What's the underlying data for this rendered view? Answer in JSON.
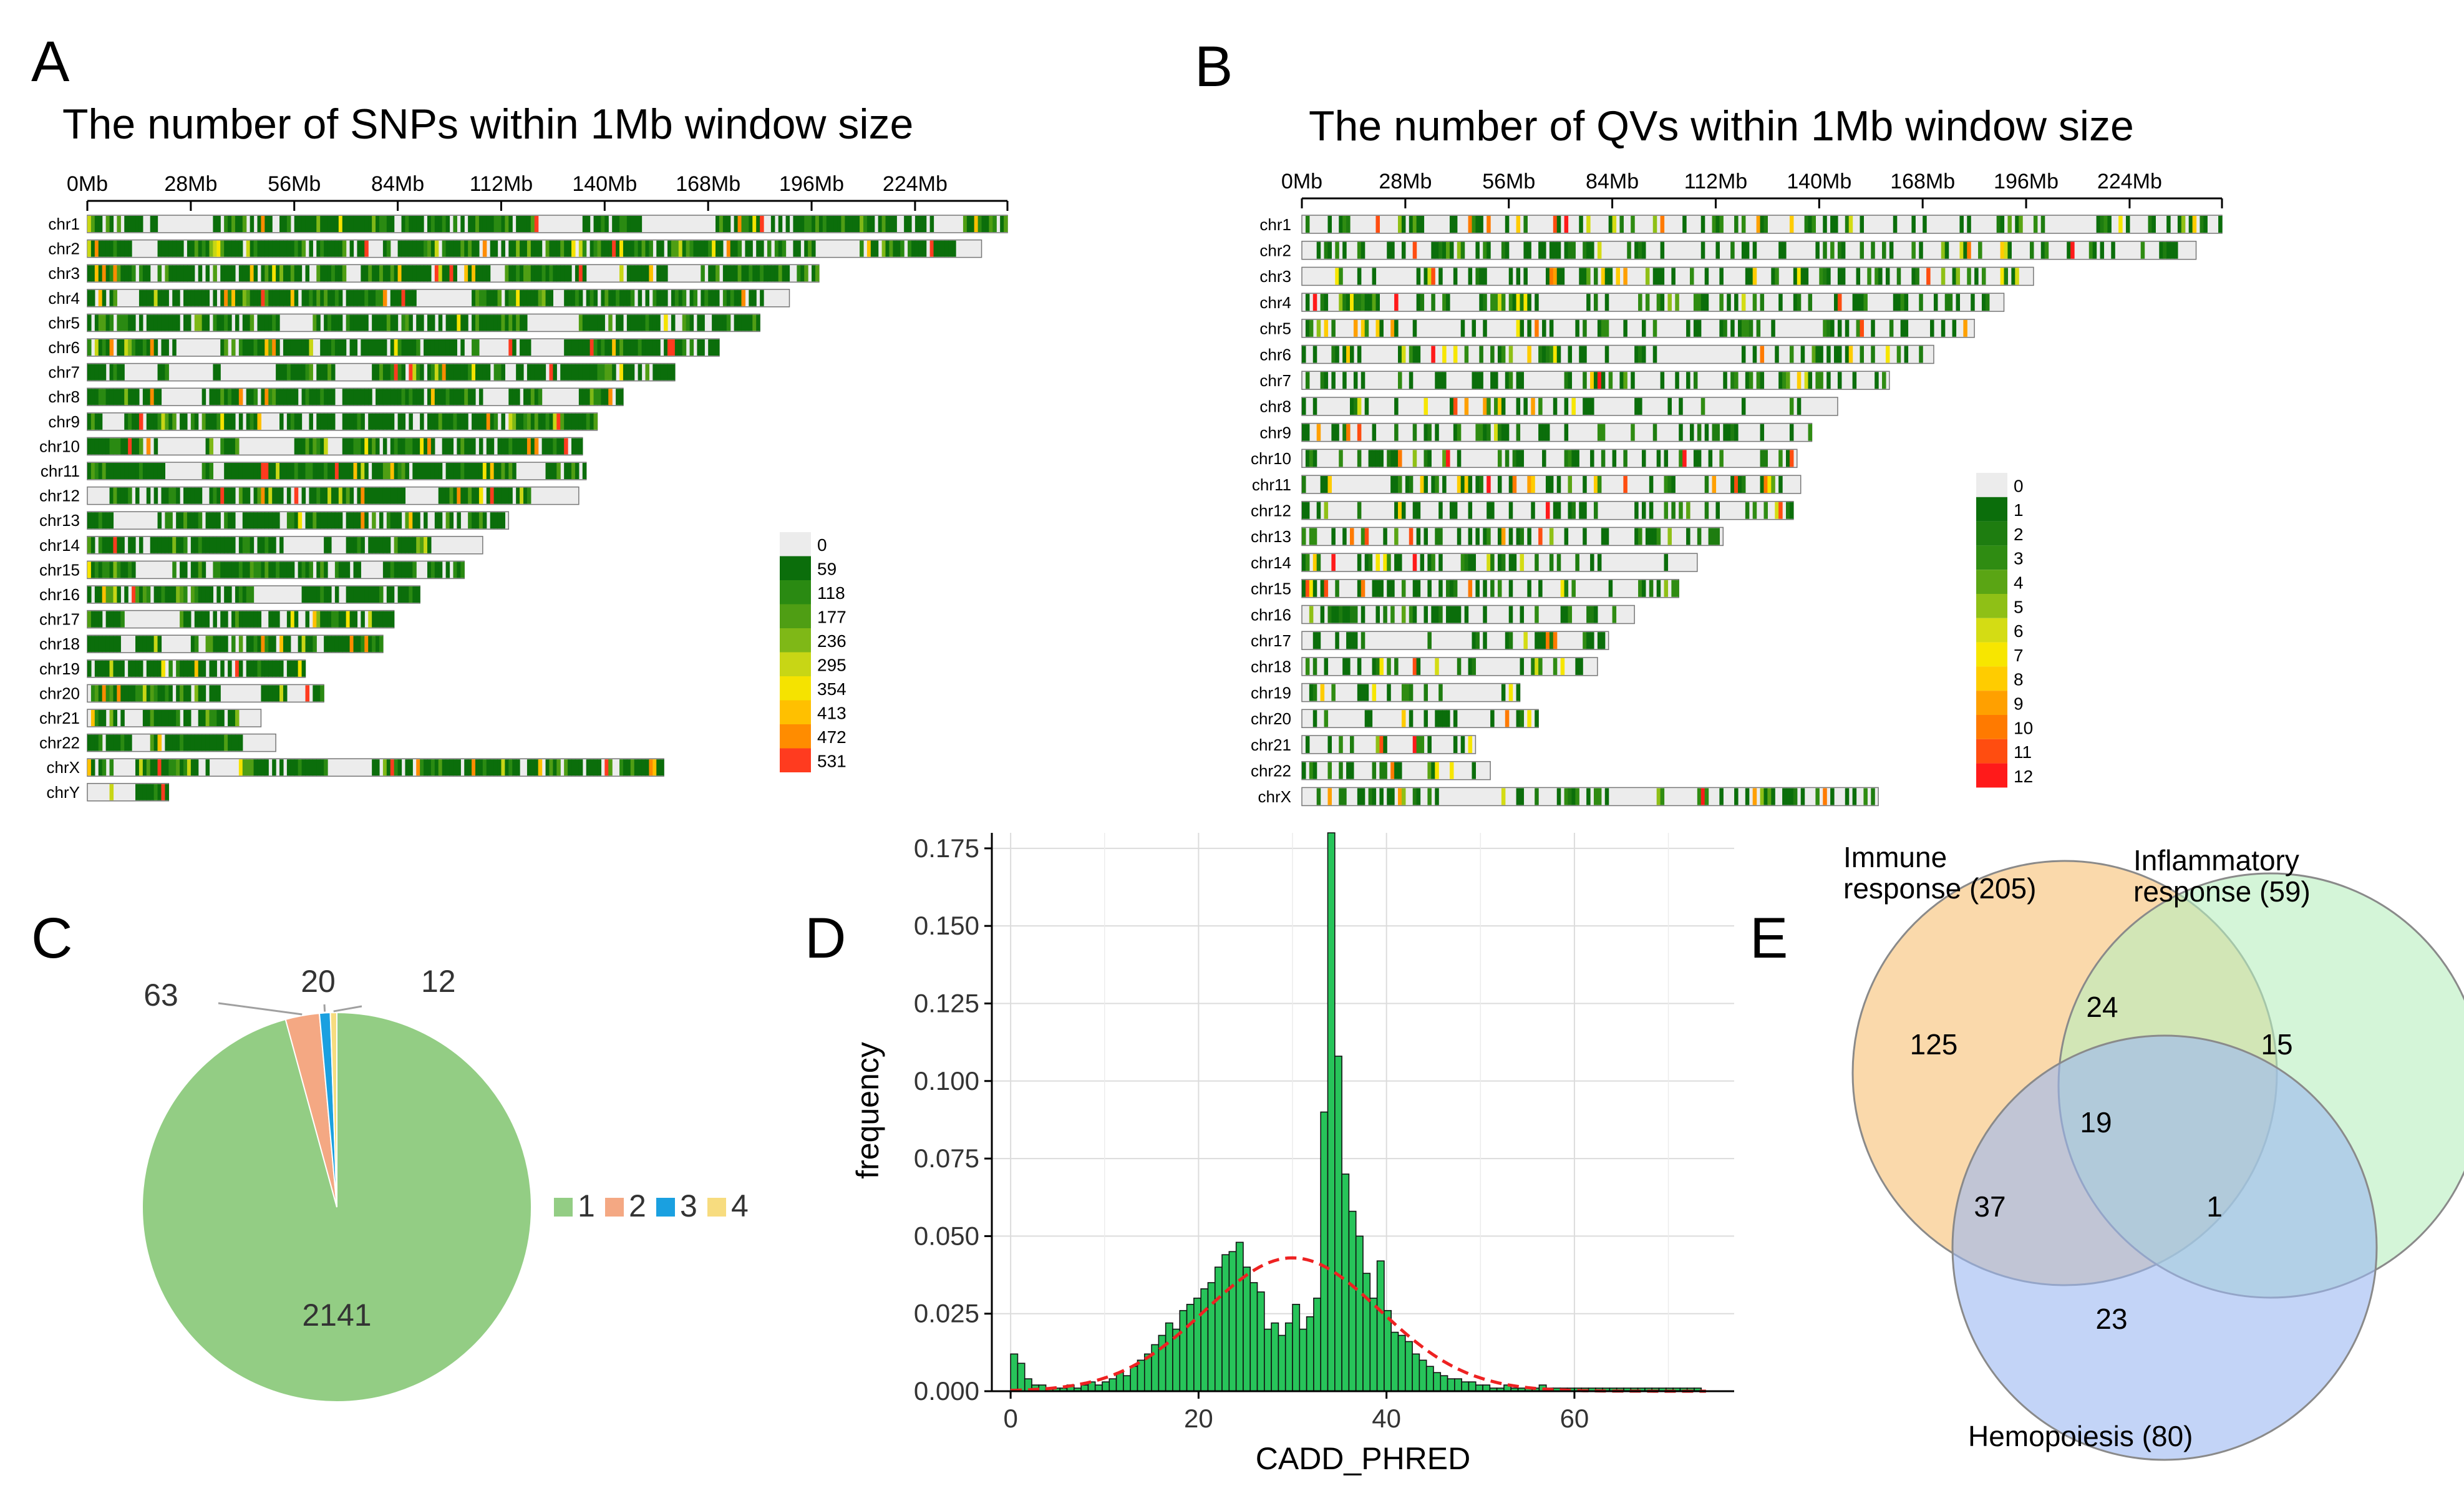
{
  "panel_letters": {
    "a": "A",
    "b": "B",
    "c": "C",
    "d": "D",
    "e": "E"
  },
  "chart_data": [
    {
      "panel": "A",
      "type": "heatmap",
      "title": "The number of SNPs within 1Mb window size",
      "x_ticks": [
        "0Mb",
        "28Mb",
        "56Mb",
        "84Mb",
        "112Mb",
        "140Mb",
        "168Mb",
        "196Mb",
        "224Mb"
      ],
      "x_tick_values": [
        0,
        28,
        56,
        84,
        112,
        140,
        168,
        196,
        224
      ],
      "xlim": [
        0,
        249
      ],
      "chromosomes": [
        "chr1",
        "chr2",
        "chr3",
        "chr4",
        "chr5",
        "chr6",
        "chr7",
        "chr8",
        "chr9",
        "chr10",
        "chr11",
        "chr12",
        "chr13",
        "chr14",
        "chr15",
        "chr16",
        "chr17",
        "chr18",
        "chr19",
        "chr20",
        "chr21",
        "chr22",
        "chrX",
        "chrY"
      ],
      "lengths_mb": [
        249,
        242,
        198,
        190,
        182,
        171,
        159,
        145,
        138,
        134,
        135,
        133,
        114,
        107,
        102,
        90,
        83,
        80,
        59,
        64,
        47,
        51,
        156,
        22
      ],
      "legend_values": [
        "0",
        "59",
        "118",
        "177",
        "236",
        "295",
        "354",
        "413",
        "472",
        "531"
      ],
      "colors": [
        "#ececec",
        "#0b6e0b",
        "#2a8a12",
        "#4f9e14",
        "#7fb817",
        "#c8d615",
        "#f5e300",
        "#ffc000",
        "#ff8c00",
        "#ff3b1f"
      ],
      "grid": false
    },
    {
      "panel": "B",
      "type": "heatmap",
      "title": "The number of QVs within 1Mb window size",
      "x_ticks": [
        "0Mb",
        "28Mb",
        "56Mb",
        "84Mb",
        "112Mb",
        "140Mb",
        "168Mb",
        "196Mb",
        "224Mb"
      ],
      "x_tick_values": [
        0,
        28,
        56,
        84,
        112,
        140,
        168,
        196,
        224
      ],
      "xlim": [
        0,
        249
      ],
      "chromosomes": [
        "chr1",
        "chr2",
        "chr3",
        "chr4",
        "chr5",
        "chr6",
        "chr7",
        "chr8",
        "chr9",
        "chr10",
        "chr11",
        "chr12",
        "chr13",
        "chr14",
        "chr15",
        "chr16",
        "chr17",
        "chr18",
        "chr19",
        "chr20",
        "chr21",
        "chr22",
        "chrX"
      ],
      "lengths_mb": [
        249,
        242,
        198,
        190,
        182,
        171,
        159,
        145,
        138,
        134,
        135,
        133,
        114,
        107,
        102,
        90,
        83,
        80,
        59,
        64,
        47,
        51,
        156
      ],
      "legend_values": [
        "0",
        "1",
        "2",
        "3",
        "4",
        "5",
        "6",
        "7",
        "8",
        "9",
        "10",
        "11",
        "12"
      ],
      "colors": [
        "#ececec",
        "#0b6e0b",
        "#1e7d10",
        "#2f8c12",
        "#5aa514",
        "#8fc016",
        "#d4dc14",
        "#f7e600",
        "#ffcc00",
        "#ffa000",
        "#ff7a00",
        "#ff4d10",
        "#ff1a1a"
      ],
      "grid": false
    },
    {
      "panel": "C",
      "type": "pie",
      "categories": [
        "1",
        "2",
        "3",
        "4"
      ],
      "values": [
        2141,
        63,
        20,
        12
      ],
      "colors": [
        "#93cd84",
        "#f4a883",
        "#1aa0e0",
        "#f7dc7f"
      ],
      "legend_position": "right"
    },
    {
      "panel": "D",
      "type": "bar",
      "xlabel": "CADD_PHRED",
      "ylabel": "frequency",
      "xlim": [
        -2,
        77
      ],
      "ylim": [
        0,
        0.18
      ],
      "x_ticks": [
        "0",
        "20",
        "40",
        "60"
      ],
      "y_ticks": [
        "0.000",
        "0.025",
        "0.050",
        "0.075",
        "0.100",
        "0.125",
        "0.150",
        "0.175"
      ],
      "bin_width": 0.75,
      "bins_x": [
        0,
        0.75,
        1.5,
        2.25,
        3,
        3.75,
        4.5,
        5.25,
        6,
        6.75,
        7.5,
        8.25,
        9,
        9.75,
        10.5,
        11.25,
        12,
        12.75,
        13.5,
        14.25,
        15,
        15.75,
        16.5,
        17.25,
        18,
        18.75,
        19.5,
        20.25,
        21,
        21.75,
        22.5,
        23.25,
        24,
        24.75,
        25.5,
        26.25,
        27,
        27.75,
        28.5,
        29.25,
        30,
        30.75,
        31.5,
        32.25,
        33,
        33.75,
        34.5,
        35.25,
        36,
        36.75,
        37.5,
        38.25,
        39,
        39.75,
        40.5,
        41.25,
        42,
        42.75,
        43.5,
        44.25,
        45,
        45.75,
        46.5,
        47.25,
        48,
        48.75,
        49.5,
        50.25,
        51,
        51.75,
        52.5,
        53.25,
        54,
        54.75,
        55.5,
        56.25,
        57,
        57.75,
        58.5,
        59.25,
        60,
        60.75,
        61.5,
        62.25,
        63,
        63.75,
        64.5,
        65.25,
        66,
        66.75,
        67.5,
        68.25,
        69,
        69.75,
        70.5,
        71.25,
        72,
        72.75
      ],
      "values": [
        0.012,
        0.009,
        0.004,
        0.002,
        0.002,
        0.001,
        0.001,
        0.001,
        0.002,
        0.001,
        0.002,
        0.003,
        0.002,
        0.003,
        0.004,
        0.006,
        0.005,
        0.008,
        0.01,
        0.012,
        0.015,
        0.018,
        0.022,
        0.02,
        0.026,
        0.028,
        0.03,
        0.033,
        0.035,
        0.04,
        0.044,
        0.045,
        0.048,
        0.04,
        0.035,
        0.032,
        0.02,
        0.022,
        0.018,
        0.022,
        0.028,
        0.02,
        0.024,
        0.03,
        0.09,
        0.18,
        0.108,
        0.07,
        0.058,
        0.05,
        0.038,
        0.03,
        0.042,
        0.026,
        0.019,
        0.018,
        0.016,
        0.012,
        0.01,
        0.008,
        0.006,
        0.005,
        0.004,
        0.004,
        0.003,
        0.003,
        0.002,
        0.002,
        0.001,
        0.001,
        0.002,
        0.001,
        0.001,
        0.001,
        0.001,
        0.002,
        0.001,
        0.001,
        0.001,
        0.001,
        0.001,
        0.001,
        0.001,
        0.001,
        0.001,
        0.001,
        0.001,
        0.001,
        0.001,
        0.001,
        0.001,
        0.001,
        0.001,
        0.001,
        0.001,
        0.001,
        0.001,
        0.001
      ],
      "density_curve": {
        "mean": 30,
        "sd": 9.3,
        "peak": 0.043
      },
      "bar_color": "#27c45a",
      "curve_color": "#ee2222",
      "grid": true
    },
    {
      "panel": "E",
      "type": "venn",
      "sets": [
        {
          "label_line1": "Immune",
          "label_line2": "response (205)",
          "color": "#f8c988"
        },
        {
          "label_line1": "Inflammatory",
          "label_line2": "response (59)",
          "color": "#b8eebe"
        },
        {
          "label_line1": "Hemopoiesis (80)",
          "label_line2": "",
          "color": "#9bb8f2"
        }
      ],
      "regions": {
        "a_only": "125",
        "ab": "24",
        "b_only": "15",
        "abc": "19",
        "ac": "37",
        "bc": "1",
        "c_only": "23"
      }
    }
  ]
}
